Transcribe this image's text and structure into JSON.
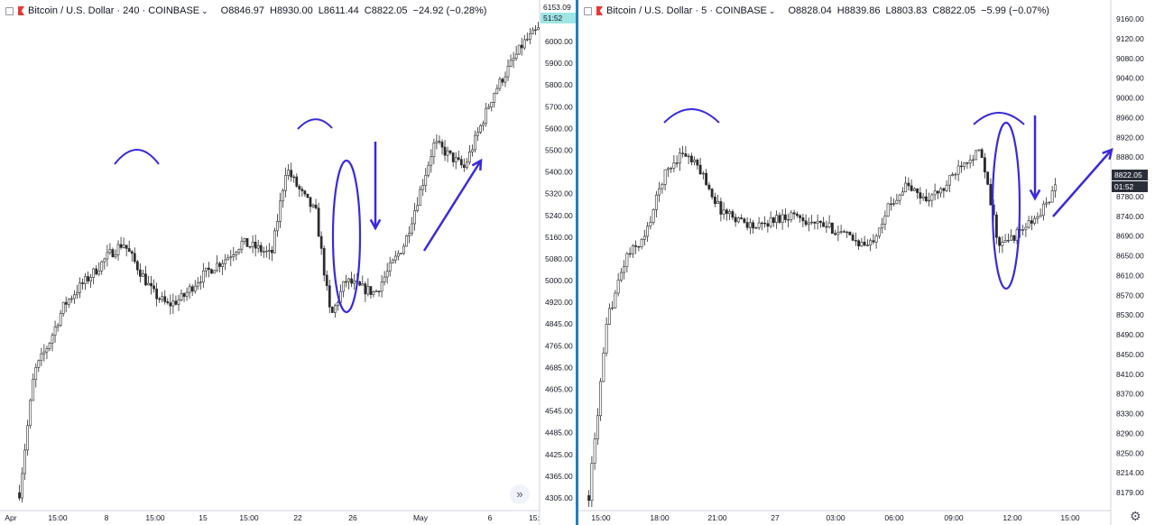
{
  "colors": {
    "candle": "#1f1f1f",
    "annotation": "#3a2bd9",
    "price_tag_bg": "#2a2e39",
    "timer_tag_bg": "#9fe5e5",
    "divider": "#2b7bb9"
  },
  "left": {
    "symbol": "Bitcoin / U.S. Dollar · 240 · COINBASE",
    "caret": "⌄",
    "ohlc": {
      "o": "O8846.97",
      "h": "H8930.00",
      "l": "L8611.44",
      "c": "C8822.05",
      "change": "−24.92 (−0.28%)"
    },
    "price_labels": [
      "6000.00",
      "5900.00",
      "5800.00",
      "5700.00",
      "5600.00",
      "5500.00",
      "5400.00",
      "5320.00",
      "5240.00",
      "5160.00",
      "5080.00",
      "5000.00",
      "4920.00",
      "4845.00",
      "4765.00",
      "4685.00",
      "4605.00",
      "4545.00",
      "4485.00",
      "4425.00",
      "4365.00",
      "4305.00"
    ],
    "last_price_tag": "6153.09",
    "partial_tag": "6",
    "timer_tag": "51:52",
    "time_labels": [
      "Apr",
      "15:00",
      "8",
      "15:00",
      "15",
      "15:00",
      "22",
      "26",
      "May",
      "6",
      "15:"
    ],
    "scroll_icon": "»"
  },
  "right": {
    "symbol": "Bitcoin / U.S. Dollar · 5 · COINBASE",
    "caret": "⌄",
    "ohlc": {
      "o": "O8828.04",
      "h": "H8839.86",
      "l": "L8803.83",
      "c": "C8822.05",
      "change": "−5.99 (−0.07%)"
    },
    "price_labels": [
      "9160.00",
      "9120.00",
      "9080.00",
      "9040.00",
      "9000.00",
      "8960.00",
      "8920.00",
      "8880.00",
      "8840.00",
      "8780.00",
      "8740.00",
      "8690.00",
      "8650.00",
      "8610.00",
      "8570.00",
      "8530.00",
      "8490.00",
      "8450.00",
      "8410.00",
      "8370.00",
      "8330.00",
      "8290.00",
      "8250.00",
      "8214.00",
      "8179.00"
    ],
    "last_price_tag": "8822.05",
    "timer_tag": "01:52",
    "time_labels": [
      "15:00",
      "18:00",
      "21:00",
      "27",
      "03:00",
      "06:00",
      "09:00",
      "12:00",
      "15:00"
    ],
    "gear_icon": "⚙"
  },
  "chart_data": [
    {
      "type": "candlestick",
      "title": "Bitcoin / U.S. Dollar · 240 · COINBASE",
      "ylim": [
        4250,
        6200
      ],
      "x": [
        "Apr",
        "15:00",
        "8",
        "15:00",
        "15",
        "15:00",
        "22",
        "26",
        "May",
        "6"
      ],
      "close_path": [
        4300,
        4780,
        4900,
        5050,
        5120,
        5180,
        5250,
        5300,
        5200,
        5100,
        5050,
        5080,
        5150,
        5200,
        5240,
        5300,
        5280,
        5250,
        5600,
        5500,
        5420,
        5000,
        5150,
        5120,
        5100,
        5200,
        5300,
        5500,
        5700,
        5650,
        5600,
        5750,
        5900,
        6000,
        6100,
        6153
      ]
    },
    {
      "type": "candlestick",
      "title": "Bitcoin / U.S. Dollar · 5 · COINBASE",
      "ylim": [
        8160,
        9180
      ],
      "x": [
        "15:00",
        "18:00",
        "21:00",
        "27",
        "03:00",
        "06:00",
        "09:00",
        "12:00",
        "15:00"
      ],
      "close_path": [
        8180,
        8550,
        8680,
        8720,
        8850,
        8900,
        8860,
        8780,
        8760,
        8740,
        8760,
        8770,
        8750,
        8740,
        8720,
        8700,
        8780,
        8830,
        8800,
        8820,
        8880,
        8900,
        8700,
        8730,
        8760,
        8822
      ]
    }
  ]
}
